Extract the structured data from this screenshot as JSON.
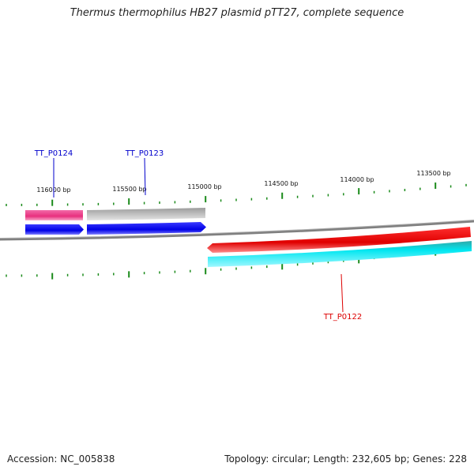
{
  "title": "Thermus thermophilus HB27 plasmid pTT27, complete sequence",
  "footer": {
    "accession": "Accession: NC_005838",
    "summary": "Topology: circular; Length: 232,605 bp; Genes: 228"
  },
  "scale": {
    "tick_labels": [
      "116000 bp",
      "115500 bp",
      "115000 bp",
      "114500 bp",
      "114000 bp",
      "113500 bp"
    ]
  },
  "genes": [
    {
      "label": "TT_P0124",
      "color": "#0000cc"
    },
    {
      "label": "TT_P0123",
      "color": "#0000cc"
    },
    {
      "label": "TT_P0122",
      "color": "#dd0000"
    }
  ],
  "colors": {
    "backbone": "#808080",
    "ticks": "#1a8a1a",
    "pink_feature": "#ee3c8c",
    "gray_feature": "#b8b8b8",
    "blue_feature": "#0000ee",
    "red_feature": "#ee0000",
    "cyan_feature": "#00e8f0"
  }
}
